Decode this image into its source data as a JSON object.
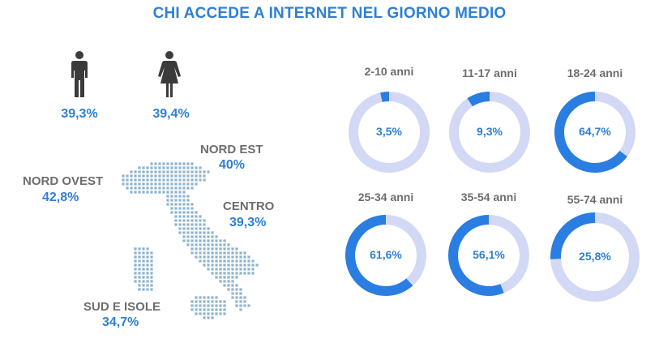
{
  "title": "CHI ACCEDE A INTERNET NEL GIORNO MEDIO",
  "gender": [
    {
      "icon": "male-icon",
      "value": "39,3%"
    },
    {
      "icon": "female-icon",
      "value": "39,4%"
    }
  ],
  "regions": [
    {
      "name": "NORD OVEST",
      "value": "42,8%"
    },
    {
      "name": "NORD EST",
      "value": "40%"
    },
    {
      "name": "CENTRO",
      "value": "39,3%"
    },
    {
      "name": "SUD E ISOLE",
      "value": "34,7%"
    }
  ],
  "colors": {
    "accent": "#2f7fd3",
    "donut_fill": "#2a7de1",
    "donut_track": "#d3d8f5",
    "label_gray": "#6d6d6d",
    "map_dots": "#8fb3cc"
  },
  "chart_data": {
    "type": "pie",
    "variant": "donut",
    "categories": [
      "2-10 anni",
      "11-17 anni",
      "18-24 anni",
      "25-34 anni",
      "35-54 anni",
      "55-74 anni"
    ],
    "values": [
      3.5,
      9.3,
      64.7,
      61.6,
      56.1,
      25.8
    ],
    "labels": [
      "3,5%",
      "9,3%",
      "64,7%",
      "61,6%",
      "56,1%",
      "25,8%"
    ],
    "unit": "%"
  }
}
